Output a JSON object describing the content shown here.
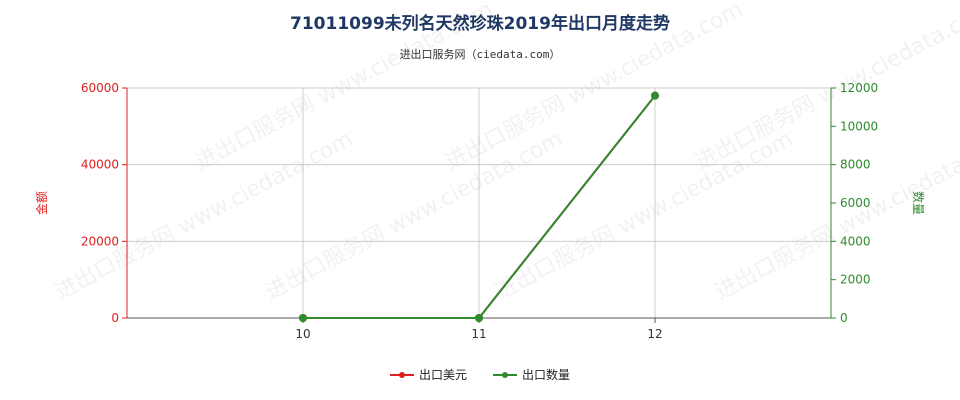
{
  "title": "71011099未列名天然珍珠2019年出口月度走势",
  "subtitle": "进出口服务网（ciedata.com）",
  "watermark": "进出口服务网 www.ciedata.com",
  "colors": {
    "amount": "#e02020",
    "quantity": "#2e8b2e",
    "title": "#1f3864",
    "grid": "#cccccc"
  },
  "legend": {
    "amount_label": "出口美元",
    "quantity_label": "出口数量"
  },
  "chart_data": {
    "type": "line",
    "title": "71011099未列名天然珍珠2019年出口月度走势",
    "categories": [
      "10",
      "11",
      "12"
    ],
    "x_tick_labels": [
      "10",
      "11",
      "12"
    ],
    "y_left": {
      "label": "金额",
      "range": [
        0,
        60000
      ],
      "ticks": [
        0,
        20000,
        40000,
        60000
      ],
      "tick_labels": [
        "0",
        "20000",
        "40000",
        "60000"
      ]
    },
    "y_right": {
      "label": "数量",
      "range": [
        0,
        12000
      ],
      "ticks": [
        0,
        2000,
        4000,
        6000,
        8000,
        10000,
        12000
      ],
      "tick_labels": [
        "0",
        "2000",
        "4000",
        "6000",
        "8000",
        "10000",
        "12000"
      ]
    },
    "series": [
      {
        "name": "出口美元",
        "axis": "left",
        "values": [
          0,
          0,
          58000
        ]
      },
      {
        "name": "出口数量",
        "axis": "right",
        "values": [
          0,
          0,
          11600
        ]
      }
    ],
    "grid": true,
    "legend_position": "bottom"
  }
}
